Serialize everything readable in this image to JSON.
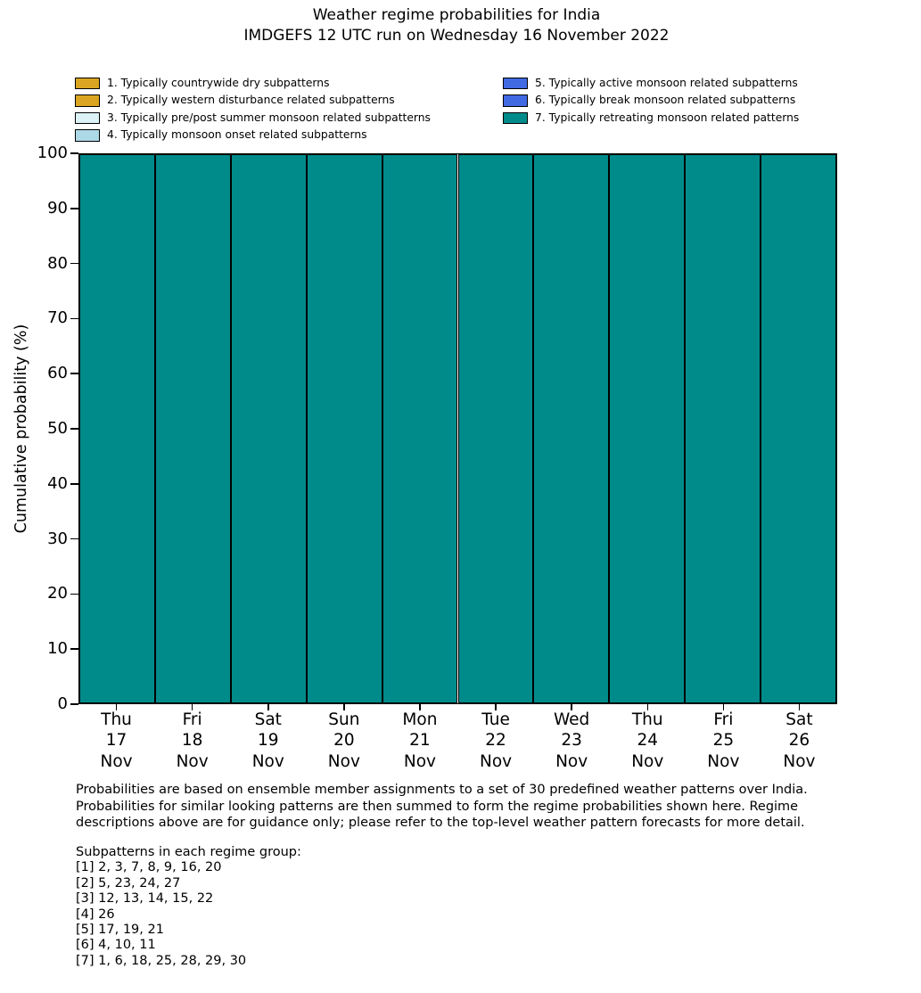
{
  "title": {
    "line1": "Weather regime probabilities for India",
    "line2": "IMDGEFS 12 UTC run on Wednesday 16 November 2022"
  },
  "legend": {
    "items": [
      {
        "label": "1. Typically countrywide dry subpatterns",
        "color": "#DAA520",
        "hatch": false,
        "column": 0
      },
      {
        "label": "2. Typically western disturbance related subpatterns",
        "color": "#DAA520",
        "hatch": true,
        "column": 0
      },
      {
        "label": "3. Typically pre/post summer monsoon related subpatterns",
        "color": "#DCF2F7",
        "hatch": false,
        "column": 0
      },
      {
        "label": "4. Typically monsoon onset related subpatterns",
        "color": "#ADD8E6",
        "hatch": false,
        "column": 0
      },
      {
        "label": "5. Typically active monsoon related subpatterns",
        "color": "#4169E1",
        "hatch": false,
        "column": 1
      },
      {
        "label": "6. Typically break monsoon related subpatterns",
        "color": "#4169E1",
        "hatch": true,
        "column": 1
      },
      {
        "label": "7. Typically retreating monsoon related patterns",
        "color": "#008B8B",
        "hatch": false,
        "column": 1
      }
    ]
  },
  "y_axis": {
    "label": "Cumulative probability (%)",
    "ticks": [
      0,
      10,
      20,
      30,
      40,
      50,
      60,
      70,
      80,
      90,
      100
    ]
  },
  "x_axis": {
    "labels": [
      {
        "day": "Thu",
        "date": "17",
        "month": "Nov"
      },
      {
        "day": "Fri",
        "date": "18",
        "month": "Nov"
      },
      {
        "day": "Sat",
        "date": "19",
        "month": "Nov"
      },
      {
        "day": "Sun",
        "date": "20",
        "month": "Nov"
      },
      {
        "day": "Mon",
        "date": "21",
        "month": "Nov"
      },
      {
        "day": "Tue",
        "date": "22",
        "month": "Nov"
      },
      {
        "day": "Wed",
        "date": "23",
        "month": "Nov"
      },
      {
        "day": "Thu",
        "date": "24",
        "month": "Nov"
      },
      {
        "day": "Fri",
        "date": "25",
        "month": "Nov"
      },
      {
        "day": "Sat",
        "date": "26",
        "month": "Nov"
      }
    ]
  },
  "chart_data": {
    "type": "bar",
    "stacked": true,
    "title": "Weather regime probabilities for India",
    "subtitle": "IMDGEFS 12 UTC run on Wednesday 16 November 2022",
    "xlabel": "",
    "ylabel": "Cumulative probability (%)",
    "ylim": [
      0,
      100
    ],
    "grid": false,
    "legend_position": "above plot, two columns",
    "categories": [
      "Thu 17 Nov",
      "Fri 18 Nov",
      "Sat 19 Nov",
      "Sun 20 Nov",
      "Mon 21 Nov",
      "Tue 22 Nov",
      "Wed 23 Nov",
      "Thu 24 Nov",
      "Fri 25 Nov",
      "Sat 26 Nov"
    ],
    "series": [
      {
        "name": "1. Typically countrywide dry subpatterns",
        "color": "#DAA520",
        "hatch": false,
        "values": [
          0,
          0,
          0,
          0,
          0,
          0,
          0,
          0,
          0,
          0
        ]
      },
      {
        "name": "2. Typically western disturbance related subpatterns",
        "color": "#DAA520",
        "hatch": true,
        "values": [
          0,
          0,
          0,
          0,
          0,
          0,
          0,
          0,
          0,
          0
        ]
      },
      {
        "name": "3. Typically pre/post summer monsoon related subpatterns",
        "color": "#DCF2F7",
        "hatch": false,
        "values": [
          0,
          0,
          0,
          0,
          0,
          0,
          0,
          0,
          0,
          0
        ]
      },
      {
        "name": "4. Typically monsoon onset related subpatterns",
        "color": "#ADD8E6",
        "hatch": false,
        "values": [
          0,
          0,
          0,
          0,
          0,
          0,
          0,
          0,
          0,
          0
        ]
      },
      {
        "name": "5. Typically active monsoon related subpatterns",
        "color": "#4169E1",
        "hatch": false,
        "values": [
          0,
          0,
          0,
          0,
          0,
          0,
          0,
          0,
          0,
          0
        ]
      },
      {
        "name": "6. Typically break monsoon related subpatterns",
        "color": "#4169E1",
        "hatch": true,
        "values": [
          0,
          0,
          0,
          0,
          0,
          0,
          0,
          0,
          0,
          0
        ]
      },
      {
        "name": "7. Typically retreating monsoon related patterns",
        "color": "#008B8B",
        "hatch": false,
        "values": [
          100,
          100,
          100,
          100,
          100,
          100,
          100,
          100,
          100,
          100
        ]
      }
    ]
  },
  "footer": {
    "paragraph_lines": [
      "Probabilities are based on ensemble member assignments to a set of 30 predefined weather patterns over India.",
      "Probabilities for similar looking patterns are then summed to form the regime probabilities shown here. Regime",
      "descriptions above are for guidance only; please refer to the top-level weather pattern forecasts for more detail."
    ],
    "subpatterns_title": "Subpatterns in each regime group:",
    "subpattern_lines": [
      "[1] 2, 3, 7, 8, 9, 16, 20",
      "[2] 5, 23, 24, 27",
      "[3] 12, 13, 14, 15, 22",
      "[4] 26",
      "[5] 17, 19, 21",
      "[6] 4, 10, 11",
      "[7] 1, 6, 18, 25, 28, 29, 30"
    ]
  }
}
